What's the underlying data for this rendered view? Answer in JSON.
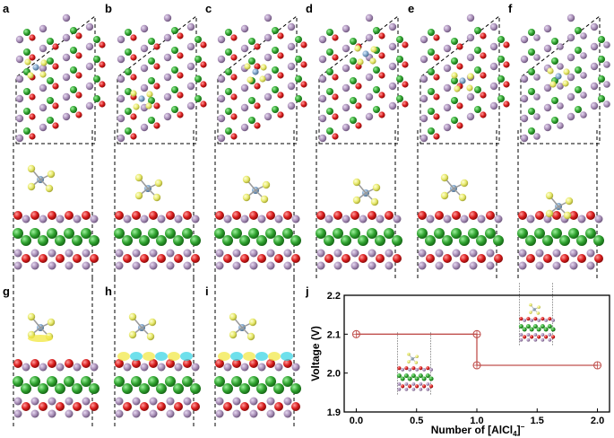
{
  "panels": {
    "top_row": [
      "a",
      "b",
      "c",
      "d",
      "e",
      "f"
    ],
    "bottom_row": [
      "g",
      "h",
      "i"
    ],
    "plot": "j"
  },
  "colors": {
    "Al_purple": "#a98fb8",
    "Mo_green": "#2ea12e",
    "O_red": "#d81c1c",
    "Cl_yellow": "#e6e86a",
    "Al_center_blue": "#7fa4c8",
    "charge_yellow": "#f2e84a",
    "charge_cyan": "#3ed6e6",
    "plot_line": "#c0504d"
  },
  "icons": [
    "crystal-top-view",
    "slab-side-view",
    "alcl4-cluster",
    "charge-density-isosurface"
  ],
  "chart_data": {
    "type": "line",
    "step": true,
    "xlabel": "Number of [AlCl4]⁻",
    "xlabel_main": "Number of [AlCl",
    "xlabel_sub": "4",
    "xlabel_tail": "]",
    "xlabel_sup": "−",
    "ylabel": "Voltage (V)",
    "xlim": [
      -0.1,
      2.1
    ],
    "ylim": [
      1.9,
      2.2
    ],
    "xticks": [
      0.0,
      0.5,
      1.0,
      1.5,
      2.0
    ],
    "xtick_labels": [
      "0.0",
      "0.5",
      "1.0",
      "1.5",
      "2.0"
    ],
    "yticks": [
      1.9,
      2.0,
      2.1,
      2.2
    ],
    "ytick_labels": [
      "1.9",
      "2.0",
      "2.1",
      "2.2"
    ],
    "series": [
      {
        "points": [
          [
            0.0,
            2.1
          ],
          [
            1.0,
            2.1
          ],
          [
            1.0,
            2.02
          ],
          [
            2.0,
            2.02
          ]
        ]
      }
    ],
    "markers": [
      [
        0.0,
        2.1
      ],
      [
        1.0,
        2.1
      ],
      [
        1.0,
        2.02
      ],
      [
        2.0,
        2.02
      ]
    ]
  }
}
